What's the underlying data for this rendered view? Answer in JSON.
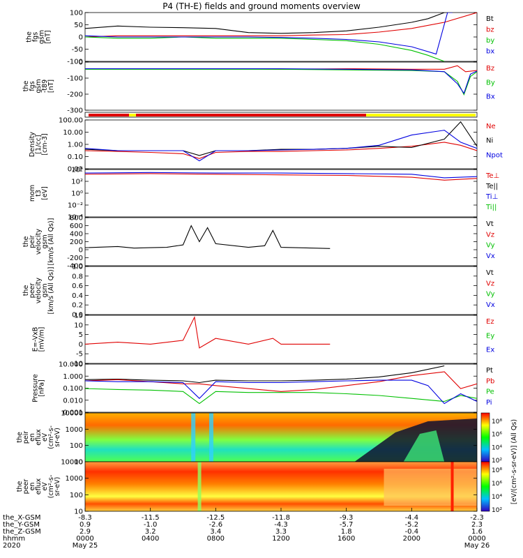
{
  "chart_data": {
    "type": "line",
    "title": "P4 (TH-E) fields and ground moments overview",
    "panels": [
      {
        "id": "fgs-gsm",
        "ylabel": [
          "the",
          "fgs",
          "gsm",
          "[nT]"
        ],
        "yticks": [
          "100",
          "50",
          "0",
          "-50",
          "-100"
        ],
        "ylim": [
          -100,
          100
        ],
        "legend": [
          {
            "label": "Bt",
            "color": "#000000"
          },
          {
            "label": "bz",
            "color": "#e00000"
          },
          {
            "label": "by",
            "color": "#00c000"
          },
          {
            "label": "bx",
            "color": "#0000e0"
          }
        ],
        "series": [
          {
            "name": "Bt",
            "color": "#000000",
            "x": [
              0,
              2,
              4,
              6,
              8,
              10,
              12,
              14,
              16,
              18,
              20,
              21,
              22,
              22.5
            ],
            "y": [
              35,
              45,
              40,
              38,
              35,
              18,
              15,
              18,
              25,
              40,
              60,
              75,
              100,
              100
            ]
          },
          {
            "name": "bz",
            "color": "#e00000",
            "x": [
              0,
              2,
              4,
              6,
              8,
              10,
              12,
              14,
              16,
              18,
              20,
              22,
              24
            ],
            "y": [
              0,
              5,
              5,
              5,
              5,
              5,
              5,
              8,
              10,
              20,
              35,
              60,
              100
            ]
          },
          {
            "name": "by",
            "color": "#00c000",
            "x": [
              0,
              2,
              4,
              6,
              8,
              10,
              12,
              14,
              16,
              18,
              20,
              21,
              22
            ],
            "y": [
              0,
              -5,
              -5,
              0,
              -5,
              -5,
              -5,
              -10,
              -15,
              -30,
              -55,
              -75,
              -100
            ]
          },
          {
            "name": "bx",
            "color": "#0000e0",
            "x": [
              0,
              2,
              4,
              6,
              8,
              10,
              12,
              14,
              16,
              18,
              20,
              21.5,
              22.2,
              22.5
            ],
            "y": [
              5,
              0,
              0,
              0,
              0,
              0,
              -2,
              -5,
              -10,
              -20,
              -40,
              -70,
              100,
              100
            ]
          }
        ]
      },
      {
        "id": "fgs-gsm-t89",
        "ylabel": [
          "the",
          "fgs",
          "gsm",
          "-t89",
          "[nT]"
        ],
        "yticks": [
          "0",
          "-100",
          "-200",
          "-300"
        ],
        "ylim": [
          -340,
          60
        ],
        "legend": [
          {
            "label": "Bz",
            "color": "#e00000"
          },
          {
            "label": "By",
            "color": "#00c000"
          },
          {
            "label": "Bx",
            "color": "#0000e0"
          }
        ],
        "series": [
          {
            "name": "Bz",
            "color": "#e00000",
            "x": [
              0,
              4,
              8,
              12,
              16,
              20,
              22,
              22.8,
              23.3,
              24
            ],
            "y": [
              5,
              5,
              5,
              0,
              5,
              0,
              0,
              30,
              -20,
              -10
            ]
          },
          {
            "name": "By",
            "color": "#00c000",
            "x": [
              0,
              4,
              8,
              12,
              16,
              20,
              22,
              22.8,
              23.2,
              23.6,
              24
            ],
            "y": [
              0,
              0,
              0,
              0,
              -5,
              -10,
              -20,
              -100,
              -210,
              -60,
              -20
            ]
          },
          {
            "name": "Bx",
            "color": "#0000e0",
            "x": [
              0,
              4,
              8,
              12,
              16,
              20,
              22,
              22.8,
              23.2,
              23.6,
              24
            ],
            "y": [
              5,
              5,
              5,
              5,
              0,
              -5,
              -20,
              -120,
              -200,
              -40,
              -15
            ]
          }
        ]
      },
      {
        "id": "density",
        "ylabel": [
          "Density",
          "[1/cc]",
          "[cm-3]"
        ],
        "yticks": [
          "100.00",
          "10.00",
          "1.00",
          "0.10",
          "0.01"
        ],
        "ylog": true,
        "ylim": [
          0.005,
          300
        ],
        "legend": [
          {
            "label": "Ne",
            "color": "#e00000"
          },
          {
            "label": "Ni",
            "color": "#000000"
          },
          {
            "label": "Npot",
            "color": "#0000e0"
          }
        ],
        "series": [
          {
            "name": "Ne",
            "color": "#e00000",
            "x": [
              0,
              2,
              4,
              6,
              7,
              8,
              10,
              12,
              14,
              16,
              18,
              20,
              22,
              23,
              24
            ],
            "y": [
              0.3,
              0.25,
              0.2,
              0.15,
              0.05,
              0.2,
              0.25,
              0.25,
              0.3,
              0.35,
              0.5,
              0.8,
              2,
              1,
              0.3
            ]
          },
          {
            "name": "Ni",
            "color": "#000000",
            "x": [
              0,
              2,
              4,
              6,
              7,
              8,
              10,
              12,
              14,
              16,
              18,
              20,
              22,
              23,
              24
            ],
            "y": [
              0.4,
              0.3,
              0.3,
              0.3,
              0.1,
              0.3,
              0.3,
              0.4,
              0.4,
              0.5,
              0.8,
              0.6,
              4,
              200,
              0.8
            ]
          },
          {
            "name": "Npot",
            "color": "#0000e0",
            "x": [
              0,
              2,
              4,
              6,
              7,
              8,
              10,
              12,
              14,
              16,
              18,
              20,
              22,
              23,
              24
            ],
            "y": [
              0.5,
              0.3,
              0.3,
              0.3,
              0.03,
              0.3,
              0.3,
              0.35,
              0.4,
              0.5,
              1,
              10,
              30,
              2,
              0.5
            ]
          }
        ]
      },
      {
        "id": "temperature",
        "ylabel": [
          "mom",
          "t3",
          "[eV]"
        ],
        "yticks": [
          "10⁴",
          "10²",
          "10⁰",
          "10⁻²",
          "10⁻⁴"
        ],
        "ylim": [
          -4,
          4
        ],
        "legend": [
          {
            "label": "Te⊥",
            "color": "#e00000"
          },
          {
            "label": "Te||",
            "color": "#000000"
          },
          {
            "label": "Ti⊥",
            "color": "#0000e0"
          },
          {
            "label": "Ti||",
            "color": "#00c000"
          }
        ],
        "series": [
          {
            "name": "Te⊥",
            "color": "#e00000",
            "x": [
              0,
              4,
              8,
              12,
              16,
              20,
              22,
              24
            ],
            "y": [
              3.2,
              3.3,
              3.2,
              3.1,
              3.0,
              2.7,
              2.2,
              2.5
            ]
          },
          {
            "name": "Ti⊥",
            "color": "#0000e0",
            "x": [
              0,
              4,
              8,
              12,
              16,
              20,
              22,
              24
            ],
            "y": [
              3.4,
              3.5,
              3.4,
              3.4,
              3.3,
              3.2,
              2.6,
              2.8
            ]
          }
        ]
      },
      {
        "id": "peir-velocity",
        "ylabel": [
          "the",
          "peir",
          "velocity",
          "gsm",
          "[km/s (All Qs)]"
        ],
        "yticks": [
          "800",
          "600",
          "400",
          "200",
          "0",
          "-200",
          "-400"
        ],
        "ylim": [
          -400,
          800
        ],
        "legend": [
          {
            "label": "Vt",
            "color": "#000000"
          },
          {
            "label": "Vz",
            "color": "#e00000"
          },
          {
            "label": "Vy",
            "color": "#00c000"
          },
          {
            "label": "Vx",
            "color": "#0000e0"
          }
        ],
        "series": [
          {
            "name": "Vt",
            "color": "#000000",
            "x": [
              0,
              2,
              3,
              4,
              5,
              6,
              6.5,
              7,
              7.5,
              8,
              10,
              11,
              11.5,
              12,
              14,
              15
            ],
            "y": [
              50,
              80,
              40,
              50,
              60,
              120,
              600,
              200,
              550,
              150,
              60,
              100,
              480,
              60,
              40,
              30
            ]
          }
        ]
      },
      {
        "id": "peer-velocity",
        "ylabel": [
          "the",
          "peer",
          "velocity",
          "gsm",
          "[km/s (All Qs)]"
        ],
        "yticks": [
          "1.0",
          "0.8",
          "0.6",
          "0.4",
          "0.2",
          "0.0"
        ],
        "ylim": [
          0,
          1
        ],
        "legend": [
          {
            "label": "Vt",
            "color": "#000000"
          },
          {
            "label": "Vz",
            "color": "#e00000"
          },
          {
            "label": "Vy",
            "color": "#00c000"
          },
          {
            "label": "Vx",
            "color": "#0000e0"
          }
        ],
        "series": []
      },
      {
        "id": "efield",
        "ylabel": [
          "E=-VxB",
          "[mV/m]"
        ],
        "yticks": [
          "15",
          "10",
          "5",
          "0",
          "-5",
          "-10"
        ],
        "ylim": [
          -10,
          15
        ],
        "legend": [
          {
            "label": "Ez",
            "color": "#e00000"
          },
          {
            "label": "Ey",
            "color": "#00c000"
          },
          {
            "label": "Ex",
            "color": "#0000e0"
          }
        ],
        "series": [
          {
            "name": "Ez",
            "color": "#e00000",
            "x": [
              0,
              2,
              4,
              6,
              6.7,
              7,
              8,
              10,
              11.5,
              12,
              14,
              15
            ],
            "y": [
              0,
              1,
              0,
              2,
              14,
              -2,
              3,
              0,
              3,
              0,
              0,
              0
            ]
          }
        ]
      },
      {
        "id": "pressure",
        "ylabel": [
          "Pressure",
          "[nPa]"
        ],
        "yticks": [
          "10.000",
          "1.000",
          "0.100",
          "0.010",
          "0.001"
        ],
        "ylog": true,
        "ylim": [
          0.0004,
          30
        ],
        "legend": [
          {
            "label": "Pt",
            "color": "#000000"
          },
          {
            "label": "Pb",
            "color": "#e00000"
          },
          {
            "label": "Pe",
            "color": "#00c000"
          },
          {
            "label": "Pi",
            "color": "#0000e0"
          }
        ],
        "series": [
          {
            "name": "Pt",
            "color": "#000000",
            "x": [
              0,
              2,
              4,
              6,
              7,
              8,
              10,
              12,
              14,
              16,
              18,
              20,
              22
            ],
            "y": [
              0.8,
              0.9,
              0.7,
              0.6,
              0.4,
              0.7,
              0.6,
              0.6,
              0.7,
              0.9,
              1.5,
              4,
              20
            ]
          },
          {
            "name": "Pb",
            "color": "#e00000",
            "x": [
              0,
              2,
              4,
              6,
              7,
              8,
              10,
              12,
              14,
              16,
              18,
              20,
              22,
              23,
              24
            ],
            "y": [
              0.6,
              0.8,
              0.5,
              0.3,
              0.3,
              0.2,
              0.1,
              0.05,
              0.08,
              0.2,
              0.5,
              2,
              5,
              0.1,
              0.3
            ]
          },
          {
            "name": "Pe",
            "color": "#00c000",
            "x": [
              0,
              2,
              4,
              6,
              7,
              8,
              10,
              12,
              14,
              16,
              18,
              20,
              22,
              23,
              24
            ],
            "y": [
              0.1,
              0.08,
              0.07,
              0.05,
              0.003,
              0.05,
              0.04,
              0.04,
              0.04,
              0.03,
              0.02,
              0.01,
              0.005,
              0.02,
              0.01
            ]
          },
          {
            "name": "Pi",
            "color": "#0000e0",
            "x": [
              0,
              2,
              4,
              6,
              7,
              8,
              10,
              12,
              14,
              16,
              18,
              20,
              21,
              22,
              23,
              24
            ],
            "y": [
              0.6,
              0.5,
              0.5,
              0.4,
              0.01,
              0.5,
              0.4,
              0.4,
              0.5,
              0.6,
              0.7,
              0.7,
              0.2,
              0.003,
              0.03,
              0.005
            ]
          }
        ]
      },
      {
        "id": "peir-eflux",
        "type": "heatmap",
        "ylabel": [
          "the",
          "peir",
          "en",
          "eflux",
          "eV",
          "(cm²-s-",
          "sr-eV)"
        ],
        "yticks": [
          "10000",
          "1000",
          "100",
          "10"
        ],
        "ylog": true,
        "ylim": [
          5,
          20000
        ]
      },
      {
        "id": "peer-eflux",
        "type": "heatmap",
        "ylabel": [
          "the",
          "peer",
          "en",
          "eflux",
          "eV",
          "(cm²-s-",
          "sr-eV)"
        ],
        "yticks": [
          "10000",
          "1000",
          "100",
          "10"
        ],
        "ylog": true,
        "ylim": [
          5,
          20000
        ]
      }
    ],
    "colorbar": {
      "ticks": [
        "10⁸",
        "10⁶",
        "10⁴",
        "10²",
        "10⁸",
        "10⁶",
        "10⁴",
        "10²"
      ],
      "label": "[eV/(cm²-s-sr-eV)] (All Qs)"
    },
    "x_axis": {
      "rows": [
        {
          "name": "the_X-GSM",
          "values": [
            "-8.3",
            "-11.5",
            "-12.5",
            "-11.8",
            "-9.3",
            "-4.4",
            "-2.3"
          ]
        },
        {
          "name": "the_Y-GSM",
          "values": [
            "0.9",
            "-1.0",
            "-2.6",
            "-4.3",
            "-5.7",
            "-5.2",
            "2.3"
          ]
        },
        {
          "name": "the_Z-GSM",
          "values": [
            "2.9",
            "3.2",
            "3.4",
            "3.3",
            "1.8",
            "-0.4",
            "1.6"
          ]
        },
        {
          "name": "hhmm",
          "values": [
            "0000",
            "0400",
            "0800",
            "1200",
            "1600",
            "2000",
            "0000"
          ]
        },
        {
          "name": "2020",
          "values": [
            "May 25",
            "",
            "",
            "",
            "",
            "",
            "May 26"
          ]
        }
      ]
    }
  }
}
